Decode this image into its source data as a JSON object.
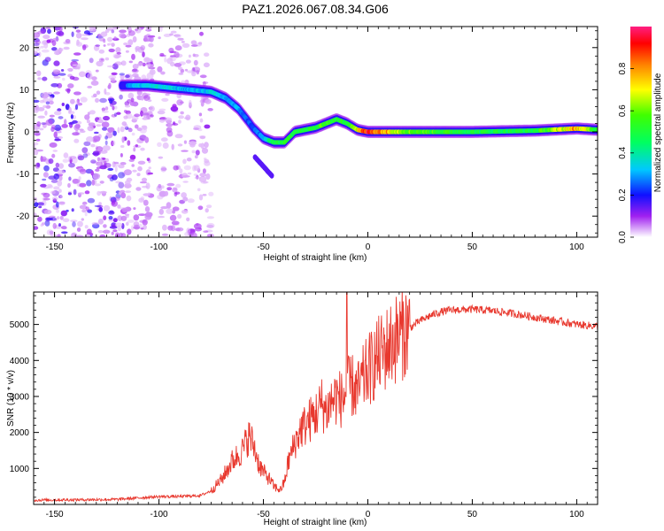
{
  "title": "PAZ1.2026.067.08.34.G06",
  "chart_data": [
    {
      "type": "heatmap",
      "title": "PAZ1.2026.067.08.34.G06",
      "xlabel": "Height of straight line (km)",
      "ylabel": "Frequency (Hz)",
      "xlim": [
        -160,
        110
      ],
      "ylim": [
        -25,
        25
      ],
      "xticks": [
        -150,
        -100,
        -50,
        0,
        50,
        100
      ],
      "yticks": [
        -20,
        -10,
        0,
        10,
        20
      ],
      "ridge": {
        "x": [
          -115,
          -105,
          -95,
          -85,
          -75,
          -68,
          -62,
          -58,
          -55,
          -50,
          -45,
          -40,
          -35,
          -30,
          -25,
          -20,
          -15,
          -10,
          -5,
          0,
          20,
          50,
          80,
          100,
          110
        ],
        "freq": [
          11,
          11,
          10.5,
          10,
          9.5,
          8,
          5.5,
          3,
          1,
          -1.5,
          -2.5,
          -2.5,
          0,
          0.5,
          1,
          2,
          3,
          2,
          0.5,
          0,
          0,
          0,
          0.3,
          0.8,
          0.5
        ],
        "amplitude": [
          0.3,
          0.35,
          0.35,
          0.3,
          0.35,
          0.3,
          0.3,
          0.25,
          0.25,
          0.3,
          0.5,
          0.5,
          0.55,
          0.5,
          0.5,
          0.6,
          0.5,
          0.55,
          0.7,
          0.95,
          0.6,
          0.5,
          0.5,
          0.8,
          0.5
        ]
      },
      "colorbar": {
        "label": "Normalized spectral amplitude",
        "range": [
          0.0,
          1.0
        ],
        "ticks": [
          "0.0",
          "0.2",
          "0.4",
          "0.6",
          "0.8"
        ]
      }
    },
    {
      "type": "line",
      "xlabel": "Height of straight line (km)",
      "ylabel": "SNR (10 * v/v)",
      "xlim": [
        -160,
        110
      ],
      "ylim": [
        0,
        5900
      ],
      "xticks": [
        -150,
        -100,
        -50,
        0,
        50,
        100
      ],
      "yticks": [
        1000,
        2000,
        3000,
        4000,
        5000
      ],
      "series": [
        {
          "name": "SNR",
          "color": "#e8382e",
          "x": [
            -160,
            -140,
            -120,
            -100,
            -90,
            -80,
            -75,
            -70,
            -65,
            -60,
            -57,
            -55,
            -52,
            -50,
            -47,
            -45,
            -42,
            -40,
            -38,
            -35,
            -32,
            -30,
            -27,
            -25,
            -22,
            -20,
            -17,
            -15,
            -12,
            -10,
            -7,
            -5,
            -2,
            0,
            5,
            10,
            15,
            20,
            25,
            30,
            35,
            40,
            50,
            60,
            70,
            80,
            90,
            100,
            110
          ],
          "values": [
            120,
            130,
            140,
            220,
            220,
            250,
            380,
            700,
            1200,
            1500,
            1900,
            1700,
            1100,
            900,
            700,
            500,
            400,
            600,
            1200,
            1700,
            2100,
            2200,
            2400,
            2500,
            2800,
            2600,
            2900,
            3000,
            2900,
            3200,
            3300,
            3100,
            3500,
            3700,
            4100,
            4400,
            4700,
            4900,
            5100,
            5250,
            5350,
            5400,
            5420,
            5380,
            5300,
            5200,
            5100,
            5000,
            4950
          ],
          "spike": {
            "x": -10,
            "value": 5900
          }
        }
      ]
    }
  ]
}
